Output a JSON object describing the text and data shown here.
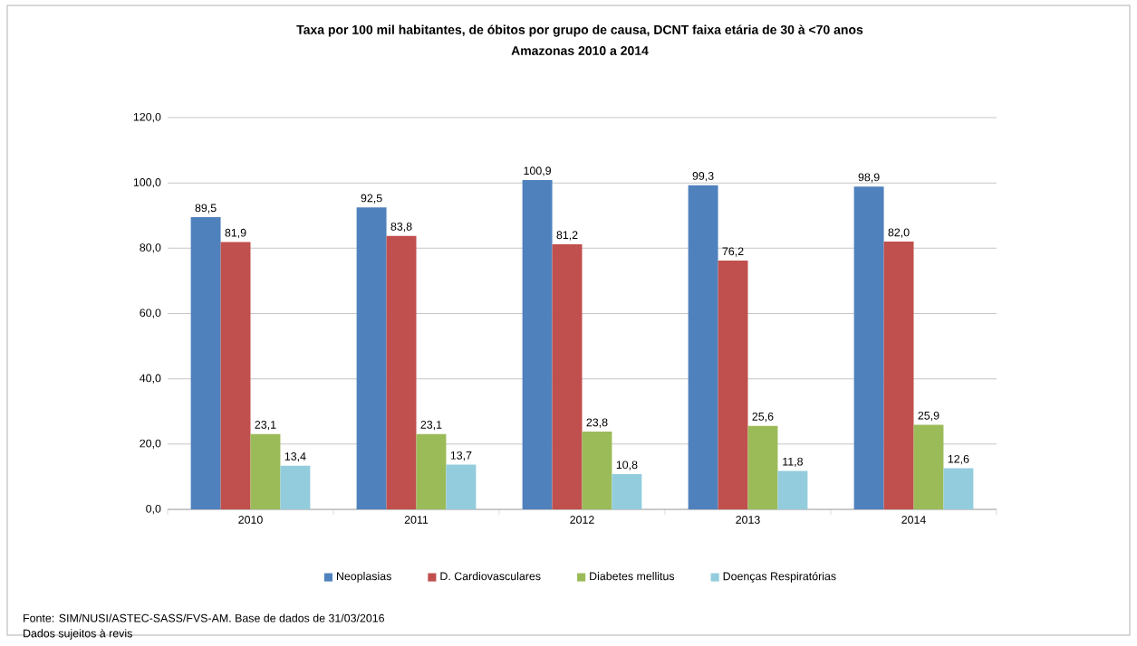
{
  "chart_data": {
    "type": "bar",
    "title": "Taxa por 100 mil habitantes, de óbitos por grupo de causa, DCNT faixa etária de 30 à <70 anos",
    "subtitle": "Amazonas 2010 a 2014",
    "categories": [
      "2010",
      "2011",
      "2012",
      "2013",
      "2014"
    ],
    "series": [
      {
        "name": "Neoplasias",
        "color": "#4f81bd",
        "values": [
          89.5,
          92.5,
          100.9,
          99.3,
          98.9
        ],
        "value_labels": [
          "89,5",
          "92,5",
          "100,9",
          "99,3",
          "98,9"
        ]
      },
      {
        "name": "D. Cardiovasculares",
        "color": "#c0504d",
        "values": [
          81.9,
          83.8,
          81.2,
          76.2,
          82.0
        ],
        "value_labels": [
          "81,9",
          "83,8",
          "81,2",
          "76,2",
          "82,0"
        ]
      },
      {
        "name": "Diabetes mellitus",
        "color": "#9bbb59",
        "values": [
          23.1,
          23.1,
          23.8,
          25.6,
          25.9
        ],
        "value_labels": [
          "23,1",
          "23,1",
          "23,8",
          "25,6",
          "25,9"
        ]
      },
      {
        "name": "Doenças Respiratórias",
        "color": "#93cddd",
        "values": [
          13.4,
          13.7,
          10.8,
          11.8,
          12.6
        ],
        "value_labels": [
          "13,4",
          "13,7",
          "10,8",
          "11,8",
          "12,6"
        ]
      }
    ],
    "ylim": [
      0,
      120
    ],
    "yticks": [
      {
        "value": 0,
        "label": "0,0"
      },
      {
        "value": 20,
        "label": "20,0"
      },
      {
        "value": 40,
        "label": "40,0"
      },
      {
        "value": 60,
        "label": "60,0"
      },
      {
        "value": 80,
        "label": "80,0"
      },
      {
        "value": 100,
        "label": "100,0"
      },
      {
        "value": 120,
        "label": "120,0"
      }
    ],
    "grid": "y",
    "legend": "bottom",
    "annotations": [
      "Fonte: SIM/NUSI/ASTEC-SASS/FVS-AM. Base de dados de 31/03/2016",
      "Dados sujeitos à revis"
    ]
  }
}
